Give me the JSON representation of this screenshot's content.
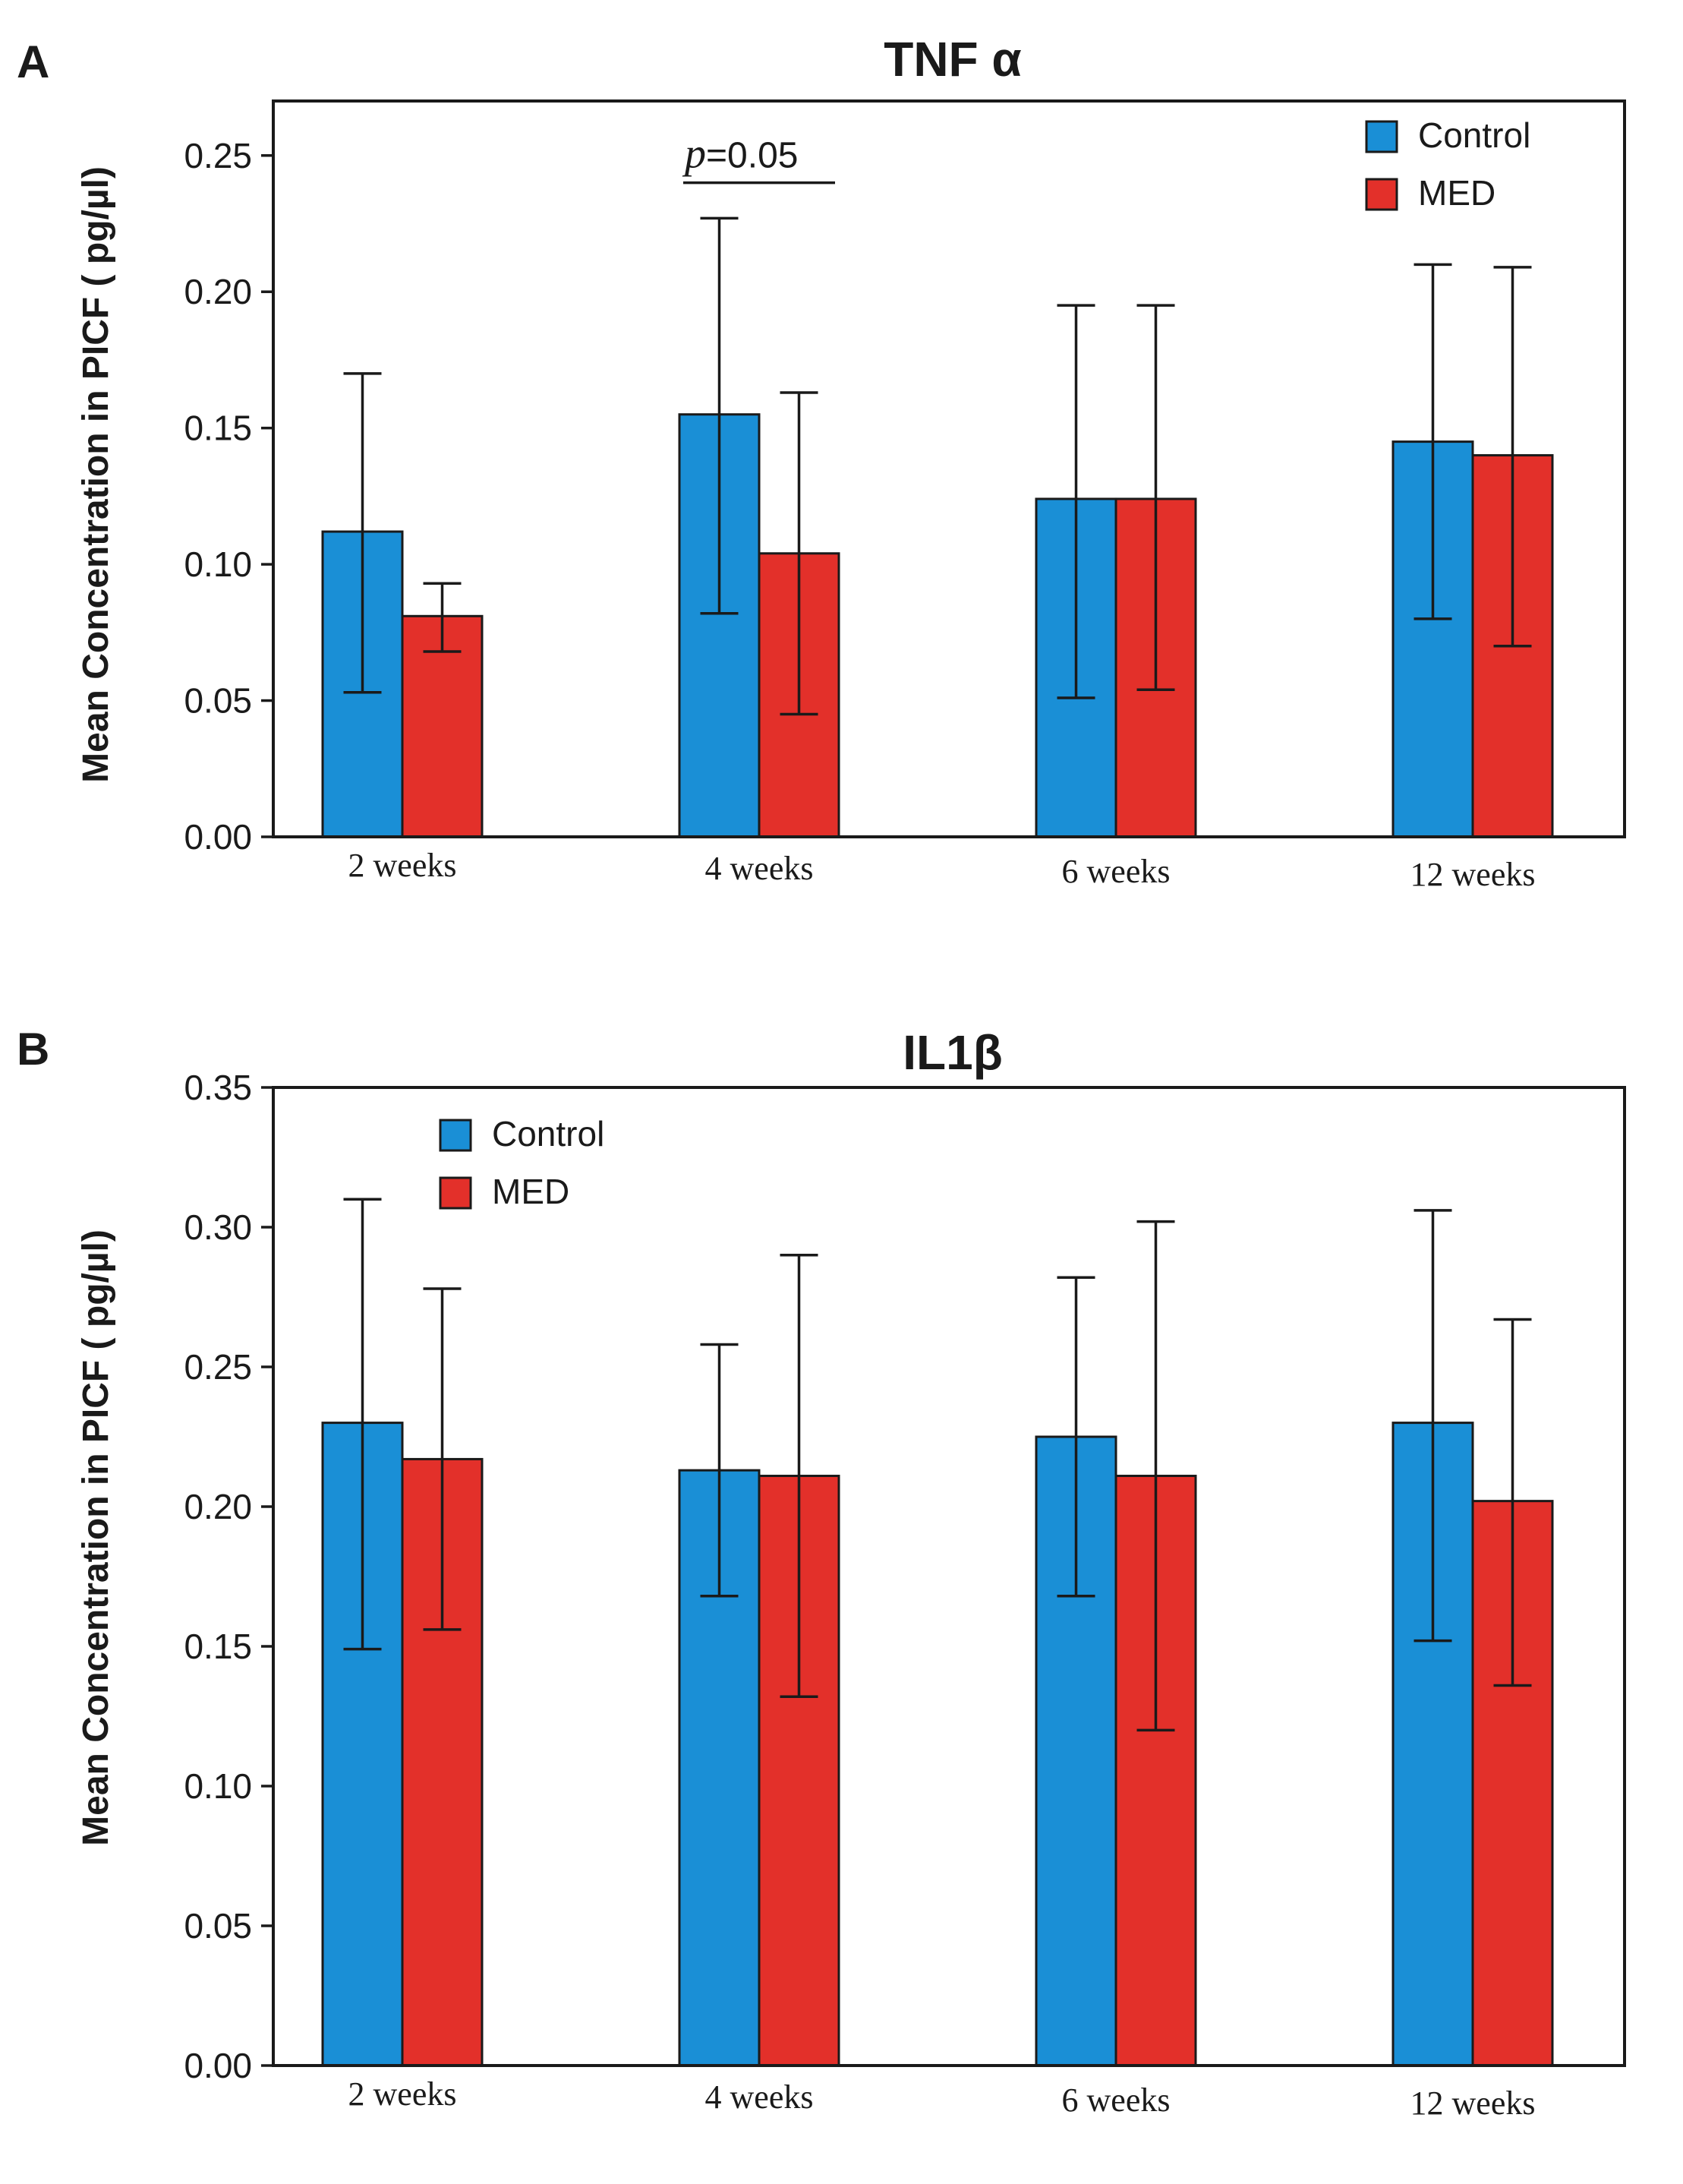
{
  "chart_data": [
    {
      "type": "bar",
      "panel": "A",
      "title": "TNF α",
      "ylabel": "Mean Concentration in PICF ( pg/µl)",
      "xlabel": "",
      "categories": [
        "2 weeks",
        "4 weeks",
        "6 weeks",
        "12 weeks"
      ],
      "ylim": [
        0,
        0.27
      ],
      "yticks": [
        0,
        0.05,
        0.1,
        0.15,
        0.2,
        0.25
      ],
      "ytick_labels": [
        "0.00",
        "0.05",
        "0.10",
        "0.15",
        "0.20",
        "0.25"
      ],
      "legend_position": "top-right",
      "grid": false,
      "series": [
        {
          "name": "Control",
          "color": "#1a8fd6",
          "values": [
            0.112,
            0.155,
            0.124,
            0.145
          ],
          "error_lower": [
            0.053,
            0.082,
            0.051,
            0.08
          ],
          "error_upper": [
            0.17,
            0.227,
            0.195,
            0.21
          ]
        },
        {
          "name": "MED",
          "color": "#e3302a",
          "values": [
            0.081,
            0.104,
            0.124,
            0.14
          ],
          "error_lower": [
            0.068,
            0.045,
            0.054,
            0.07
          ],
          "error_upper": [
            0.093,
            0.163,
            0.195,
            0.209
          ]
        }
      ],
      "annotations": [
        {
          "category_index": 1,
          "italic": "p",
          "text": "=0.05",
          "y": 0.24
        }
      ]
    },
    {
      "type": "bar",
      "panel": "B",
      "title": "IL1β",
      "ylabel": "Mean Concentration in PICF ( pg/µl)",
      "xlabel": "",
      "categories": [
        "2 weeks",
        "4 weeks",
        "6 weeks",
        "12 weeks"
      ],
      "ylim": [
        0,
        0.35
      ],
      "yticks": [
        0,
        0.05,
        0.1,
        0.15,
        0.2,
        0.25,
        0.3,
        0.35
      ],
      "ytick_labels": [
        "0.00",
        "0.05",
        "0.10",
        "0.15",
        "0.20",
        "0.25",
        "0.30",
        "0.35"
      ],
      "legend_position": "top-left",
      "grid": false,
      "series": [
        {
          "name": "Control",
          "color": "#1a8fd6",
          "values": [
            0.23,
            0.213,
            0.225,
            0.23
          ],
          "error_lower": [
            0.149,
            0.168,
            0.168,
            0.152
          ],
          "error_upper": [
            0.31,
            0.258,
            0.282,
            0.306
          ]
        },
        {
          "name": "MED",
          "color": "#e3302a",
          "values": [
            0.217,
            0.211,
            0.211,
            0.202
          ],
          "error_lower": [
            0.156,
            0.132,
            0.12,
            0.136
          ],
          "error_upper": [
            0.278,
            0.29,
            0.302,
            0.267
          ]
        }
      ],
      "annotations": []
    }
  ]
}
